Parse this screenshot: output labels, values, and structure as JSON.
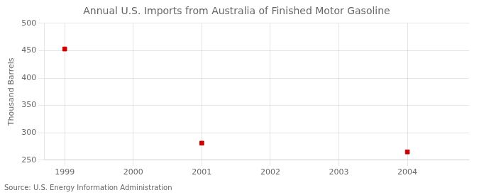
{
  "chart_data": {
    "type": "scatter",
    "title": "Annual U.S. Imports from Australia of Finished Motor Gasoline",
    "ylabel": "Thousand Barrels",
    "annotations": [
      "Source: U.S. Energy Information Administration"
    ],
    "x": [
      1999,
      2001,
      2004
    ],
    "values": [
      453,
      281,
      265
    ],
    "color": "#cc0000",
    "marker": "square",
    "xlim": [
      1998.7,
      2004.9
    ],
    "xticks": [
      1999,
      2000,
      2001,
      2002,
      2003,
      2004
    ],
    "ylim": [
      250,
      500
    ],
    "yticks": [
      250,
      300,
      350,
      400,
      450,
      500
    ],
    "grid": true
  }
}
